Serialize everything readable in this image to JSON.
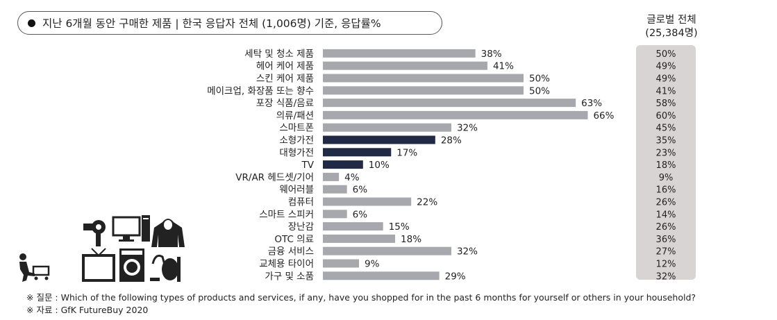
{
  "title": "지난 6개월 동안 구매한 제품 | 한국 응답자 전체 (1,006명) 기준, 응답률%",
  "global_header": {
    "line1": "글로벌 전체",
    "line2": "(25,384명)"
  },
  "chart_data": {
    "type": "bar",
    "orientation": "horizontal",
    "title": "지난 6개월 동안 구매한 제품 | 한국 응답자 전체 (1,006명) 기준, 응답률%",
    "unit": "%",
    "categories": [
      "세탁 및 청소 제품",
      "헤어 케어 제품",
      "스킨 케어 제품",
      "메이크업, 화장품 또는 향수",
      "포장 식품/음료",
      "의류/패션",
      "스마트폰",
      "소형가전",
      "대형가전",
      "TV",
      "VR/AR 헤드셋/기어",
      "웨어러블",
      "컴퓨터",
      "스마트 스피커",
      "장난감",
      "OTC 의료",
      "금융 서비스",
      "교체용 타이어",
      "가구 및 소품"
    ],
    "series": [
      {
        "name": "한국",
        "values": [
          38,
          41,
          50,
          50,
          63,
          66,
          32,
          28,
          17,
          10,
          4,
          6,
          22,
          6,
          15,
          18,
          32,
          9,
          29
        ]
      },
      {
        "name": "글로벌 전체 (25,384명)",
        "values": [
          50,
          49,
          49,
          41,
          58,
          60,
          45,
          35,
          23,
          18,
          9,
          16,
          26,
          14,
          26,
          36,
          27,
          12,
          32
        ]
      }
    ],
    "highlighted_categories": [
      "소형가전",
      "대형가전",
      "TV"
    ],
    "xlim": [
      0,
      70
    ],
    "colors": {
      "default": "#a7a8ae",
      "highlight": "#202a44"
    }
  },
  "footnotes": {
    "question": "※ 질문 :  Which of the following types of products and services, if any, have you shopped for in the past 6 months for yourself or others in your household?",
    "source": "※ 자료 : GfK FutureBuy 2020"
  },
  "icons": [
    "shopping-cart-person-icon",
    "hair-dryer-icon",
    "desktop-computer-icon",
    "hoodie-icon",
    "tv-icon",
    "washing-machine-icon",
    "vacuum-cleaner-icon"
  ]
}
